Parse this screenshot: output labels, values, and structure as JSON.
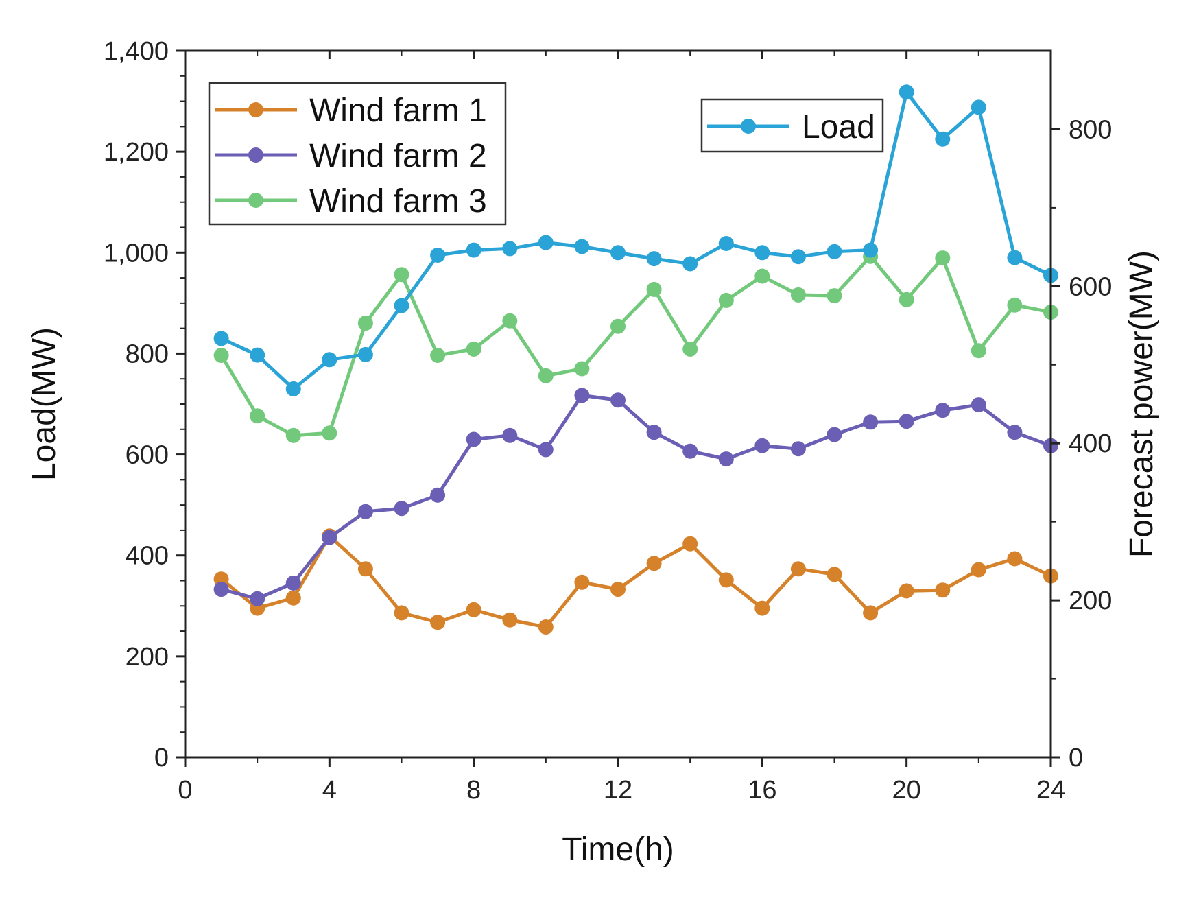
{
  "chart_data": {
    "type": "line",
    "xlabel": "Time(h)",
    "ylabel_left": "Load(MW)",
    "ylabel_right": "Forecast power(MW)",
    "xlim": [
      0,
      24
    ],
    "ylim_left": [
      0,
      1400
    ],
    "ylim_right": [
      0,
      900
    ],
    "x_ticks": [
      "0",
      "4",
      "8",
      "12",
      "16",
      "20",
      "24"
    ],
    "y_left_ticks": [
      "0",
      "200",
      "400",
      "600",
      "800",
      "1,000",
      "1,200",
      "1,400"
    ],
    "y_right_ticks": [
      "0",
      "200",
      "400",
      "600",
      "800"
    ],
    "grid": false,
    "x": [
      1,
      2,
      3,
      4,
      5,
      6,
      7,
      8,
      9,
      10,
      11,
      12,
      13,
      14,
      15,
      16,
      17,
      18,
      19,
      20,
      21,
      22,
      23,
      24
    ],
    "series": [
      {
        "name": "Wind farm 1",
        "axis": "right",
        "color": "#d5822a",
        "values": [
          227,
          190,
          203,
          282,
          240,
          184,
          172,
          188,
          175,
          166,
          223,
          214,
          247,
          272,
          226,
          190,
          240,
          233,
          184,
          212,
          213,
          239,
          253,
          231
        ]
      },
      {
        "name": "Wind farm 2",
        "axis": "right",
        "color": "#6a5fb5",
        "values": [
          214,
          202,
          222,
          280,
          313,
          317,
          334,
          405,
          410,
          392,
          461,
          455,
          414,
          390,
          380,
          397,
          393,
          411,
          427,
          428,
          442,
          449,
          414,
          397
        ]
      },
      {
        "name": "Wind farm 3",
        "axis": "right",
        "color": "#72c97b",
        "values": [
          512,
          435,
          410,
          413,
          553,
          615,
          512,
          520,
          556,
          486,
          495,
          549,
          596,
          520,
          582,
          613,
          589,
          588,
          638,
          583,
          636,
          518,
          576,
          567
        ]
      },
      {
        "name": "Load",
        "axis": "left",
        "color": "#2aa3d6",
        "values": [
          830,
          797,
          730,
          788,
          798,
          895,
          995,
          1005,
          1008,
          1020,
          1012,
          1000,
          988,
          978,
          1018,
          1000,
          992,
          1002,
          1005,
          1318,
          1225,
          1288,
          990,
          955
        ]
      }
    ],
    "legends": [
      {
        "position": "top-left",
        "entries": [
          "Wind farm 1",
          "Wind farm 2",
          "Wind farm 3"
        ]
      },
      {
        "position": "top-right",
        "entries": [
          "Load"
        ]
      }
    ]
  }
}
